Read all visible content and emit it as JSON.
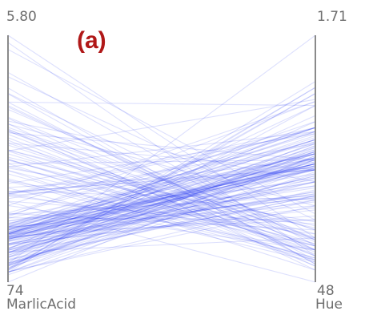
{
  "panel_label": "(a)",
  "colors": {
    "line": "#2e3cf0",
    "axis": "#8a8a8a",
    "text": "#6e6e6e",
    "panel_label": "#b01818"
  },
  "chart_data": {
    "type": "parallel-coordinates",
    "axes": [
      {
        "name": "MarlicAcid",
        "top_label": "5.80",
        "bottom_label": "74",
        "range": [
          0.74,
          5.8
        ]
      },
      {
        "name": "Hue",
        "top_label": "1.71",
        "bottom_label": "48",
        "range": [
          0.48,
          1.71
        ]
      }
    ],
    "lines": [
      [
        1.71,
        1.04
      ],
      [
        1.76,
        1.05
      ],
      [
        1.87,
        0.86
      ],
      [
        1.95,
        1.02
      ],
      [
        2.59,
        1.04
      ],
      [
        1.81,
        1.07
      ],
      [
        1.5,
        1.07
      ],
      [
        1.9,
        1.06
      ],
      [
        1.64,
        1.08
      ],
      [
        1.35,
        1.01
      ],
      [
        2.16,
        1.25
      ],
      [
        1.48,
        1.17
      ],
      [
        1.73,
        1.15
      ],
      [
        1.87,
        1.25
      ],
      [
        1.81,
        1.2
      ],
      [
        1.92,
        1.28
      ],
      [
        1.57,
        1.07
      ],
      [
        1.59,
        1.13
      ],
      [
        3.1,
        1.23
      ],
      [
        1.63,
        0.96
      ],
      [
        3.8,
        1.09
      ],
      [
        0.89,
        1.03
      ],
      [
        0.74,
        1.11
      ],
      [
        0.95,
        0.89
      ],
      [
        1.35,
        0.89
      ],
      [
        1.94,
        1.12
      ],
      [
        1.73,
        1.07
      ],
      [
        1.35,
        1.12
      ],
      [
        1.29,
        1.12
      ],
      [
        1.83,
        1.19
      ],
      [
        1.99,
        1.04
      ],
      [
        1.77,
        1.09
      ],
      [
        1.81,
        1.23
      ],
      [
        1.73,
        1.25
      ],
      [
        1.73,
        1.19
      ],
      [
        1.92,
        1.1
      ],
      [
        1.53,
        0.91
      ],
      [
        1.65,
        1.06
      ],
      [
        1.68,
        1.13
      ],
      [
        1.09,
        1.09
      ],
      [
        2.55,
        1.09
      ],
      [
        1.52,
        1.12
      ],
      [
        1.68,
        1.04
      ],
      [
        1.77,
        1.18
      ],
      [
        2.13,
        0.91
      ],
      [
        3.59,
        1.04
      ],
      [
        2.51,
        1.04
      ],
      [
        1.63,
        0.92
      ],
      [
        1.75,
        1.07
      ],
      [
        1.87,
        1.12
      ],
      [
        0.94,
        1.11
      ],
      [
        1.1,
        1.1
      ],
      [
        1.07,
        1.18
      ],
      [
        1.25,
        1.28
      ],
      [
        1.58,
        1.07
      ],
      [
        1.24,
        1.13
      ],
      [
        1.43,
        1.1
      ],
      [
        1.71,
        0.95
      ],
      [
        1.86,
        0.9
      ],
      [
        1.41,
        1.04
      ],
      [
        1.21,
        0.91
      ],
      [
        1.68,
        0.98
      ],
      [
        4.43,
        1.36
      ],
      [
        0.94,
        1.45
      ],
      [
        1.33,
        1.31
      ],
      [
        1.01,
        1.42
      ],
      [
        1.88,
        1.22
      ],
      [
        0.95,
        0.86
      ],
      [
        0.98,
        1.36
      ],
      [
        1.01,
        1.45
      ],
      [
        1.12,
        1.71
      ],
      [
        1.61,
        1.1
      ],
      [
        2.08,
        1.38
      ],
      [
        1.66,
        1.08
      ],
      [
        1.19,
        0.91
      ],
      [
        1.25,
        1.16
      ],
      [
        1.73,
        0.79
      ],
      [
        2.55,
        1.25
      ],
      [
        1.41,
        1.36
      ],
      [
        0.94,
        1.05
      ],
      [
        1.01,
        1.16
      ],
      [
        1.36,
        1.01
      ],
      [
        0.98,
        1.48
      ],
      [
        1.51,
        0.84
      ],
      [
        1.07,
        1.15
      ],
      [
        1.39,
        1.09
      ],
      [
        2.53,
        1.23
      ],
      [
        2.11,
        1.25
      ],
      [
        1.73,
        0.98
      ],
      [
        1.14,
        1.0
      ],
      [
        1.61,
        1.19
      ],
      [
        2.58,
        1.05
      ],
      [
        3.43,
        1.39
      ],
      [
        1.09,
        1.42
      ],
      [
        1.12,
        1.06
      ],
      [
        1.33,
        1.07
      ],
      [
        1.7,
        1.21
      ],
      [
        1.63,
        0.92
      ],
      [
        1.43,
        1.17
      ],
      [
        2.45,
        1.17
      ],
      [
        1.17,
        1.13
      ],
      [
        1.73,
        1.07
      ],
      [
        1.83,
        1.0
      ],
      [
        1.8,
        0.9
      ],
      [
        1.72,
        1.23
      ],
      [
        1.99,
        0.99
      ],
      [
        3.17,
        1.09
      ],
      [
        1.73,
        1.25
      ],
      [
        1.66,
        1.1
      ],
      [
        1.87,
        1.04
      ],
      [
        1.53,
        0.93
      ],
      [
        1.81,
        1.06
      ],
      [
        1.13,
        0.94
      ],
      [
        1.25,
        0.98
      ],
      [
        2.76,
        1.22
      ],
      [
        1.07,
        1.09
      ],
      [
        1.39,
        1.05
      ],
      [
        1.04,
        1.02
      ],
      [
        2.31,
        1.38
      ],
      [
        1.44,
        1.14
      ],
      [
        1.29,
        1.14
      ],
      [
        1.58,
        0.93
      ],
      [
        1.61,
        1.19
      ],
      [
        2.68,
        1.04
      ],
      [
        2.05,
        1.12
      ],
      [
        1.39,
        0.98
      ],
      [
        1.85,
        0.96
      ],
      [
        2.6,
        0.89
      ],
      [
        1.51,
        0.85
      ],
      [
        3.98,
        0.86
      ],
      [
        4.04,
        0.98
      ],
      [
        5.65,
        0.61
      ],
      [
        3.37,
        0.66
      ],
      [
        3.03,
        0.54
      ],
      [
        2.83,
        0.66
      ],
      [
        5.8,
        0.7
      ],
      [
        4.72,
        0.57
      ],
      [
        5.51,
        0.82
      ],
      [
        3.59,
        0.69
      ],
      [
        2.96,
        0.6
      ],
      [
        2.81,
        0.59
      ],
      [
        3.24,
        0.7
      ],
      [
        3.55,
        0.67
      ],
      [
        3.88,
        0.56
      ],
      [
        3.91,
        0.74
      ],
      [
        3.7,
        0.61
      ],
      [
        4.28,
        0.69
      ],
      [
        3.83,
        0.7
      ],
      [
        4.43,
        0.59
      ],
      [
        5.04,
        0.66
      ],
      [
        3.3,
        0.75
      ],
      [
        4.95,
        0.79
      ],
      [
        4.6,
        0.57
      ],
      [
        4.12,
        0.68
      ],
      [
        3.43,
        0.63
      ],
      [
        3.84,
        0.61
      ],
      [
        4.1,
        0.58
      ],
      [
        2.39,
        0.48
      ],
      [
        3.08,
        0.78
      ],
      [
        3.86,
        0.74
      ],
      [
        3.77,
        0.64
      ],
      [
        3.45,
        0.72
      ],
      [
        3.12,
        0.67
      ],
      [
        4.61,
        0.69
      ],
      [
        2.4,
        0.77
      ],
      [
        3.65,
        0.56
      ],
      [
        3.17,
        0.59
      ],
      [
        3.26,
        0.64
      ],
      [
        2.86,
        0.6
      ],
      [
        2.67,
        0.58
      ],
      [
        4.36,
        0.64
      ],
      [
        3.45,
        0.76
      ],
      [
        3.26,
        0.62
      ],
      [
        2.51,
        0.72
      ],
      [
        3.99,
        0.54
      ],
      [
        4.33,
        0.64
      ],
      [
        3.03,
        0.66
      ],
      [
        1.67,
        0.81
      ],
      [
        2.31,
        0.64
      ],
      [
        2.56,
        0.64
      ],
      [
        1.36,
        0.7
      ],
      [
        2.15,
        0.74
      ],
      [
        1.65,
        0.88
      ],
      [
        2.06,
        0.79
      ]
    ]
  }
}
